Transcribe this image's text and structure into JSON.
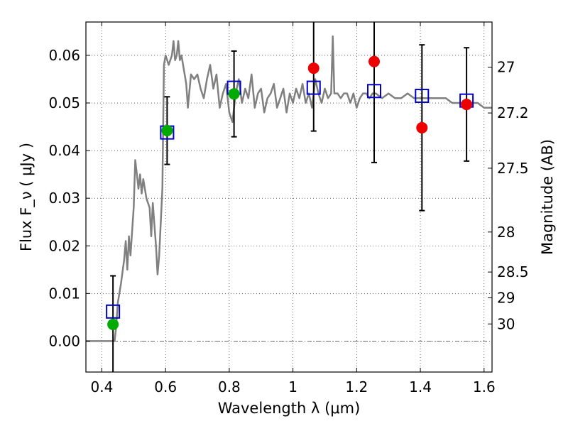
{
  "chart_data": {
    "type": "scatter",
    "xlabel": "Wavelength  λ (μm)",
    "ylabel": "Flux  F_ν  ( μJy )",
    "ylabel_right": "Magnitude (AB)",
    "xlim": [
      0.35,
      1.625
    ],
    "ylim": [
      -0.0065,
      0.067
    ],
    "grid": true,
    "x_ticks": [
      0.4,
      0.6,
      0.8,
      1.0,
      1.2,
      1.4,
      1.6
    ],
    "x_tick_labels": [
      "0.4",
      "0.6",
      "0.8",
      "1",
      "1.2",
      "1.4",
      "1.6"
    ],
    "y_ticks": [
      0.0,
      0.01,
      0.02,
      0.03,
      0.04,
      0.05,
      0.06
    ],
    "y_tick_labels": [
      "0.00",
      "0.01",
      "0.02",
      "0.03",
      "0.04",
      "0.05",
      "0.06"
    ],
    "mag_ticks": [
      {
        "flux": 0.0575,
        "label": "27"
      },
      {
        "flux": 0.0479,
        "label": "27.2"
      },
      {
        "flux": 0.0363,
        "label": "27.5"
      },
      {
        "flux": 0.0229,
        "label": "28"
      },
      {
        "flux": 0.0145,
        "label": "28.5"
      },
      {
        "flux": 0.0091,
        "label": "29"
      },
      {
        "flux": 0.0036,
        "label": "30"
      }
    ],
    "zero_line": 0.0,
    "spectrum": {
      "color": "#808080",
      "x": [
        0.35,
        0.43,
        0.44,
        0.445,
        0.45,
        0.46,
        0.47,
        0.475,
        0.48,
        0.485,
        0.49,
        0.5,
        0.505,
        0.51,
        0.515,
        0.52,
        0.525,
        0.53,
        0.54,
        0.55,
        0.555,
        0.56,
        0.57,
        0.575,
        0.58,
        0.59,
        0.595,
        0.6,
        0.605,
        0.61,
        0.62,
        0.625,
        0.63,
        0.635,
        0.64,
        0.645,
        0.65,
        0.66,
        0.665,
        0.67,
        0.68,
        0.69,
        0.7,
        0.71,
        0.72,
        0.73,
        0.74,
        0.75,
        0.76,
        0.77,
        0.78,
        0.79,
        0.8,
        0.81,
        0.82,
        0.83,
        0.84,
        0.85,
        0.86,
        0.87,
        0.88,
        0.89,
        0.9,
        0.91,
        0.92,
        0.93,
        0.94,
        0.95,
        0.96,
        0.97,
        0.98,
        0.99,
        1.0,
        1.01,
        1.02,
        1.03,
        1.04,
        1.05,
        1.06,
        1.07,
        1.08,
        1.09,
        1.1,
        1.11,
        1.12,
        1.125,
        1.13,
        1.14,
        1.15,
        1.16,
        1.17,
        1.18,
        1.19,
        1.2,
        1.21,
        1.22,
        1.23,
        1.24,
        1.25,
        1.26,
        1.28,
        1.3,
        1.32,
        1.34,
        1.36,
        1.38,
        1.4,
        1.42,
        1.44,
        1.46,
        1.48,
        1.5,
        1.52,
        1.54,
        1.56,
        1.58,
        1.6,
        1.625
      ],
      "y": [
        0.0,
        0.0,
        0.0,
        0.003,
        0.008,
        0.012,
        0.017,
        0.021,
        0.015,
        0.022,
        0.018,
        0.028,
        0.038,
        0.035,
        0.032,
        0.035,
        0.031,
        0.034,
        0.03,
        0.028,
        0.022,
        0.029,
        0.02,
        0.014,
        0.018,
        0.032,
        0.058,
        0.06,
        0.059,
        0.058,
        0.06,
        0.063,
        0.059,
        0.06,
        0.063,
        0.059,
        0.06,
        0.056,
        0.054,
        0.049,
        0.056,
        0.055,
        0.056,
        0.053,
        0.051,
        0.055,
        0.058,
        0.053,
        0.056,
        0.049,
        0.052,
        0.054,
        0.048,
        0.046,
        0.052,
        0.055,
        0.05,
        0.053,
        0.051,
        0.056,
        0.049,
        0.052,
        0.053,
        0.048,
        0.051,
        0.052,
        0.054,
        0.049,
        0.051,
        0.053,
        0.048,
        0.052,
        0.05,
        0.053,
        0.051,
        0.054,
        0.05,
        0.052,
        0.049,
        0.055,
        0.052,
        0.05,
        0.053,
        0.051,
        0.052,
        0.064,
        0.052,
        0.052,
        0.051,
        0.052,
        0.052,
        0.05,
        0.052,
        0.049,
        0.051,
        0.052,
        0.052,
        0.051,
        0.052,
        0.052,
        0.051,
        0.052,
        0.051,
        0.051,
        0.052,
        0.051,
        0.051,
        0.051,
        0.051,
        0.051,
        0.051,
        0.05,
        0.05,
        0.05,
        0.05,
        0.05,
        0.049,
        0.049
      ]
    },
    "series": [
      {
        "kind": "model",
        "marker": "open-square",
        "color": "#0000cc",
        "x": [
          0.435,
          0.605,
          0.815,
          1.065,
          1.255,
          1.405,
          1.545
        ],
        "y": [
          0.0062,
          0.0438,
          0.0532,
          0.0532,
          0.0525,
          0.0515,
          0.0505
        ]
      },
      {
        "kind": "observed",
        "marker": "filled-circle",
        "color": "#00aa00",
        "x": [
          0.435,
          0.605,
          0.815
        ],
        "y": [
          0.0035,
          0.0442,
          0.0519
        ],
        "err": [
          0.0102,
          0.0071,
          0.009
        ]
      },
      {
        "kind": "observed",
        "marker": "filled-circle",
        "color": "#ee0000",
        "x": [
          1.065,
          1.255,
          1.405,
          1.545
        ],
        "y": [
          0.0573,
          0.0587,
          0.0448,
          0.0497
        ],
        "err": [
          0.0132,
          0.0212,
          0.0174,
          0.0119
        ]
      }
    ]
  }
}
